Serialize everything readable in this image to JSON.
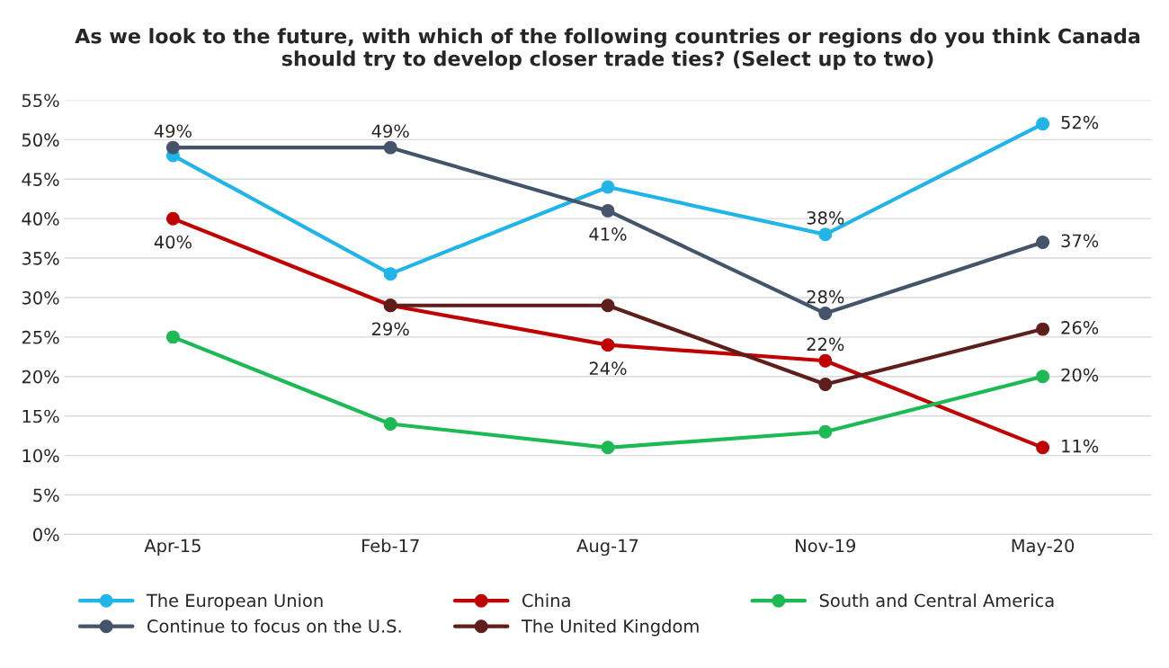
{
  "chart_data": {
    "type": "line",
    "title": "As we look to the future, with which of the following countries or regions do you think Canada should try to develop closer trade ties? (Select up to two)",
    "categories": [
      "Apr-15",
      "Feb-17",
      "Aug-17",
      "Nov-19",
      "May-20"
    ],
    "series": [
      {
        "name": "The European Union",
        "color": "#21b4e8",
        "values": [
          48,
          33,
          44,
          38,
          52
        ],
        "value_labels": [
          null,
          null,
          null,
          "38%",
          "52%"
        ]
      },
      {
        "name": "Continue to focus on the U.S.",
        "color": "#44546a",
        "values": [
          49,
          49,
          41,
          28,
          37
        ],
        "value_labels": [
          "49%",
          "49%",
          "41%",
          "28%",
          "37%"
        ]
      },
      {
        "name": "China",
        "color": "#c00000",
        "values": [
          40,
          29,
          24,
          22,
          11
        ],
        "value_labels": [
          "40%",
          "29%",
          "24%",
          "22%",
          "11%"
        ]
      },
      {
        "name": "The United Kingdom",
        "color": "#5e1e1b",
        "values": [
          null,
          29,
          29,
          19,
          26
        ],
        "value_labels": [
          null,
          null,
          null,
          null,
          "26%"
        ]
      },
      {
        "name": "South and Central America",
        "color": "#1db954",
        "values": [
          25,
          14,
          11,
          13,
          20
        ],
        "value_labels": [
          null,
          null,
          null,
          null,
          "20%"
        ]
      }
    ],
    "ylim": [
      0,
      55
    ],
    "yticks": [
      {
        "value": 0,
        "label": "0%"
      },
      {
        "value": 5,
        "label": "5%"
      },
      {
        "value": 10,
        "label": "10%"
      },
      {
        "value": 15,
        "label": "15%"
      },
      {
        "value": 20,
        "label": "20%"
      },
      {
        "value": 25,
        "label": "25%"
      },
      {
        "value": 30,
        "label": "30%"
      },
      {
        "value": 35,
        "label": "35%"
      },
      {
        "value": 40,
        "label": "40%"
      },
      {
        "value": 45,
        "label": "45%"
      },
      {
        "value": 50,
        "label": "50%"
      },
      {
        "value": 55,
        "label": "55%"
      }
    ],
    "grid": "y",
    "legend": "bottom",
    "marker": "circle",
    "line_style": "solid"
  }
}
